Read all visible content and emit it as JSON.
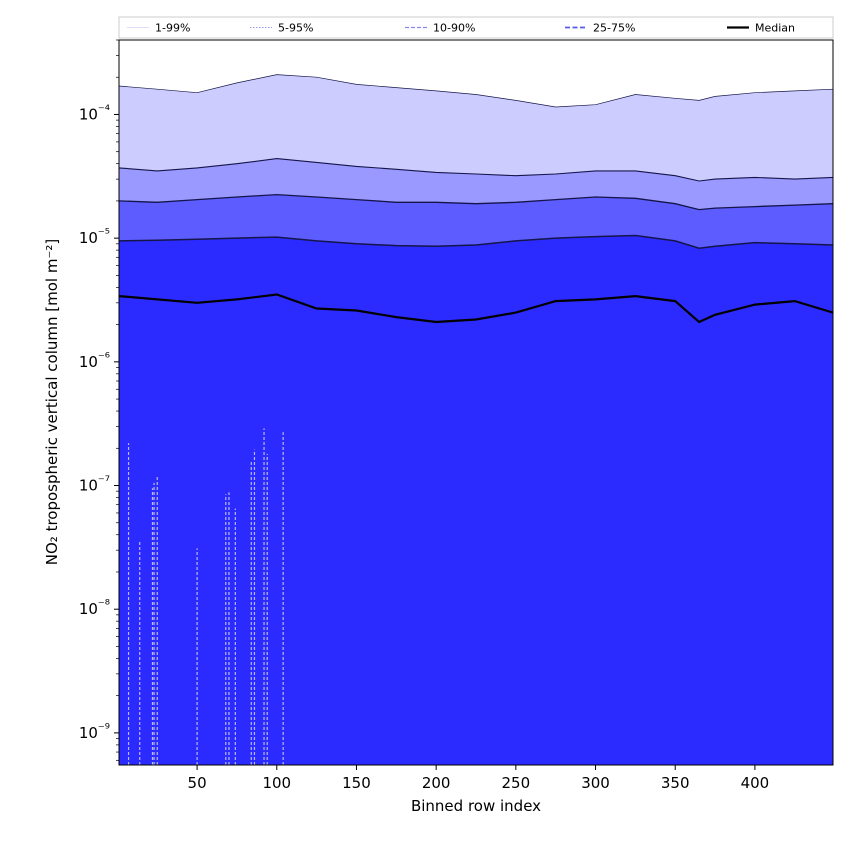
{
  "chart_data": {
    "type": "area",
    "title": "",
    "xlabel": "Binned row index",
    "ylabel": "NO₂ tropospheric vertical column [mol m⁻²]",
    "xlim": [
      1,
      449
    ],
    "ylim": [
      5.5e-10,
      0.0004
    ],
    "yscale": "log",
    "grid": false,
    "legend_position": "top, above plot (single row)",
    "x_ticks": [
      50,
      100,
      150,
      200,
      250,
      300,
      350,
      400
    ],
    "x_tick_labels": [
      "50",
      "100",
      "150",
      "200",
      "250",
      "300",
      "350",
      "400"
    ],
    "y_ticks": [
      1e-09,
      1e-08,
      1e-07,
      1e-06,
      1e-05,
      0.0001
    ],
    "y_tick_labels": [
      "10⁻⁹",
      "10⁻⁸",
      "10⁻⁷",
      "10⁻⁶",
      "10⁻⁵",
      "10⁻⁴"
    ],
    "legend": [
      {
        "label": "1-99%",
        "color": "#d5d5f8",
        "style": "thin-solid"
      },
      {
        "label": "5-95%",
        "color": "#9a9af0",
        "style": "thin-dotted"
      },
      {
        "label": "10-90%",
        "color": "#8686f2",
        "style": "dashed"
      },
      {
        "label": "25-75%",
        "color": "#5a5af0",
        "style": "dashed-thick"
      },
      {
        "label": "Median",
        "color": "#000000",
        "style": "solid-thick"
      }
    ],
    "band_colors": {
      "outer": "#ccccfe",
      "p5_p95": "#9999ff",
      "p10_p90": "#5c5cff",
      "inner": "#2b2bff"
    },
    "x": [
      1,
      25,
      50,
      75,
      100,
      125,
      150,
      175,
      200,
      225,
      250,
      275,
      300,
      325,
      350,
      365,
      375,
      400,
      425,
      449
    ],
    "series": [
      {
        "name": "99%",
        "values": [
          0.00017,
          0.00016,
          0.00015,
          0.00018,
          0.00021,
          0.0002,
          0.000175,
          0.000165,
          0.000155,
          0.000145,
          0.00013,
          0.000115,
          0.00012,
          0.000145,
          0.000135,
          0.00013,
          0.00014,
          0.00015,
          0.000155,
          0.00016
        ]
      },
      {
        "name": "95%",
        "values": [
          3.7e-05,
          3.5e-05,
          3.7e-05,
          4e-05,
          4.4e-05,
          4.1e-05,
          3.8e-05,
          3.6e-05,
          3.4e-05,
          3.3e-05,
          3.2e-05,
          3.3e-05,
          3.5e-05,
          3.5e-05,
          3.2e-05,
          2.9e-05,
          3e-05,
          3.1e-05,
          3e-05,
          3.1e-05
        ]
      },
      {
        "name": "90%",
        "values": [
          2e-05,
          1.95e-05,
          2.05e-05,
          2.15e-05,
          2.25e-05,
          2.15e-05,
          2.05e-05,
          1.95e-05,
          1.95e-05,
          1.9e-05,
          1.95e-05,
          2.05e-05,
          2.15e-05,
          2.1e-05,
          1.9e-05,
          1.7e-05,
          1.75e-05,
          1.8e-05,
          1.85e-05,
          1.9e-05
        ]
      },
      {
        "name": "75%",
        "values": [
          9.5e-06,
          9.6e-06,
          9.8e-06,
          1e-05,
          1.02e-05,
          9.5e-06,
          9e-06,
          8.7e-06,
          8.6e-06,
          8.8e-06,
          9.5e-06,
          1e-05,
          1.03e-05,
          1.05e-05,
          9.5e-06,
          8.3e-06,
          8.6e-06,
          9.2e-06,
          9e-06,
          8.8e-06
        ]
      },
      {
        "name": "Median",
        "values": [
          3.4e-06,
          3.2e-06,
          3e-06,
          3.2e-06,
          3.5e-06,
          2.7e-06,
          2.6e-06,
          2.3e-06,
          2.1e-06,
          2.2e-06,
          2.5e-06,
          3.1e-06,
          3.2e-06,
          3.4e-06,
          3.1e-06,
          2.1e-06,
          2.4e-06,
          2.9e-06,
          3.1e-06,
          2.5e-06
        ]
      }
    ],
    "lower_spikes": [
      {
        "x": 7,
        "top": 2.2e-07
      },
      {
        "x": 14,
        "top": 3.5e-08
      },
      {
        "x": 22,
        "top": 9.5e-08
      },
      {
        "x": 23,
        "top": 1.05e-07
      },
      {
        "x": 25,
        "top": 1.2e-07
      },
      {
        "x": 50,
        "top": 3.1e-08
      },
      {
        "x": 68,
        "top": 8.5e-08
      },
      {
        "x": 70,
        "top": 8.8e-08
      },
      {
        "x": 74,
        "top": 6.5e-08
      },
      {
        "x": 84,
        "top": 1.6e-07
      },
      {
        "x": 86,
        "top": 1.95e-07
      },
      {
        "x": 92,
        "top": 2.9e-07
      },
      {
        "x": 94,
        "top": 1.8e-07
      },
      {
        "x": 104,
        "top": 2.7e-07
      }
    ]
  }
}
